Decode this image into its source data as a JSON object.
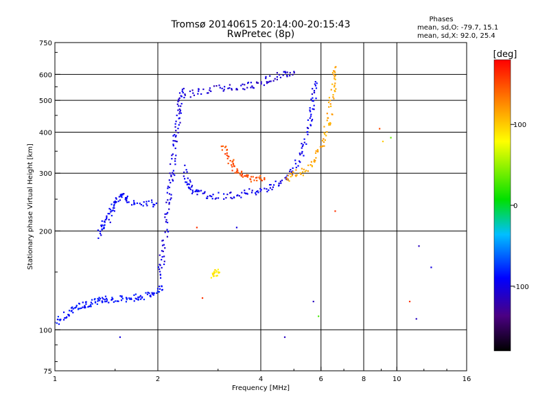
{
  "chart_data": {
    "type": "scatter",
    "title": "Tromsø 20140615 20:14:00-20:15:43",
    "subtitle": "RwPretec (8p)",
    "xlabel": "Frequency [MHz]",
    "ylabel": "Stationary phase Virtual Height [km]",
    "x_scale": "log",
    "y_scale": "log",
    "xlim": [
      1,
      16
    ],
    "ylim": [
      75,
      750
    ],
    "x_ticks": [
      {
        "value": 1,
        "label": "1"
      },
      {
        "value": 2,
        "label": "2"
      },
      {
        "value": 4,
        "label": "4"
      },
      {
        "value": 6,
        "label": "6"
      },
      {
        "value": 8,
        "label": "8"
      },
      {
        "value": 10,
        "label": "10"
      },
      {
        "value": 16,
        "label": "16"
      }
    ],
    "x_gridlines": [
      2,
      4,
      6,
      8,
      10
    ],
    "y_ticks": [
      {
        "value": 75,
        "label": "75"
      },
      {
        "value": 100,
        "label": "100"
      },
      {
        "value": 200,
        "label": "200"
      },
      {
        "value": 300,
        "label": "300"
      },
      {
        "value": 400,
        "label": "400"
      },
      {
        "value": 500,
        "label": "500"
      },
      {
        "value": 600,
        "label": "600"
      },
      {
        "value": 750,
        "label": "750"
      }
    ],
    "y_gridlines": [
      100,
      200,
      300,
      400,
      500,
      600
    ],
    "stats_header": "Phases",
    "stats_lines": [
      "mean, sd,O: -79.7, 15.1",
      "mean, sd,X:  92.0, 25.4"
    ],
    "colorbar": {
      "label": "[deg]",
      "range": [
        -180,
        180
      ],
      "ticks": [
        {
          "value": 100,
          "label": "100"
        },
        {
          "value": 0,
          "label": "0"
        },
        {
          "value": -100,
          "label": "-100"
        }
      ]
    },
    "traces": [
      {
        "phase": -95,
        "points": [
          [
            1.0,
            105
          ],
          [
            1.05,
            108
          ],
          [
            1.1,
            113
          ],
          [
            1.15,
            117
          ],
          [
            1.2,
            119
          ],
          [
            1.25,
            120
          ],
          [
            1.3,
            121
          ],
          [
            1.35,
            123
          ],
          [
            1.4,
            124
          ],
          [
            1.5,
            124
          ],
          [
            1.6,
            124
          ],
          [
            1.7,
            125
          ],
          [
            1.8,
            126
          ],
          [
            1.9,
            128
          ],
          [
            2.0,
            131
          ],
          [
            2.05,
            136
          ]
        ]
      },
      {
        "phase": -100,
        "points": [
          [
            1.35,
            195
          ],
          [
            1.38,
            205
          ],
          [
            1.42,
            215
          ],
          [
            1.45,
            228
          ],
          [
            1.48,
            240
          ],
          [
            1.52,
            250
          ],
          [
            1.56,
            255
          ],
          [
            1.6,
            252
          ],
          [
            1.7,
            245
          ],
          [
            1.85,
            243
          ],
          [
            1.98,
            243
          ]
        ]
      },
      {
        "phase": -110,
        "points": [
          [
            2.02,
            145
          ],
          [
            2.05,
            160
          ],
          [
            2.08,
            180
          ],
          [
            2.12,
            210
          ],
          [
            2.15,
            240
          ],
          [
            2.17,
            270
          ],
          [
            2.2,
            300
          ],
          [
            2.22,
            340
          ],
          [
            2.25,
            380
          ],
          [
            2.28,
            420
          ],
          [
            2.3,
            460
          ],
          [
            2.33,
            500
          ],
          [
            2.36,
            540
          ]
        ]
      },
      {
        "phase": -105,
        "points": [
          [
            2.4,
            310
          ],
          [
            2.45,
            280
          ],
          [
            2.5,
            268
          ],
          [
            2.6,
            262
          ],
          [
            2.8,
            258
          ],
          [
            3.0,
            256
          ],
          [
            3.3,
            257
          ],
          [
            3.6,
            260
          ],
          [
            3.9,
            264
          ],
          [
            4.2,
            270
          ],
          [
            4.5,
            280
          ],
          [
            4.8,
            290
          ],
          [
            5.0,
            310
          ],
          [
            5.2,
            340
          ],
          [
            5.4,
            375
          ],
          [
            5.55,
            420
          ],
          [
            5.65,
            470
          ],
          [
            5.72,
            520
          ],
          [
            5.78,
            570
          ]
        ]
      },
      {
        "phase": -115,
        "points": [
          [
            2.4,
            520
          ],
          [
            2.6,
            530
          ],
          [
            2.9,
            540
          ],
          [
            3.2,
            548
          ],
          [
            3.5,
            552
          ],
          [
            3.8,
            556
          ],
          [
            4.1,
            570
          ],
          [
            4.4,
            590
          ],
          [
            4.7,
            605
          ],
          [
            5.0,
            612
          ]
        ]
      },
      {
        "phase": 115,
        "points": [
          [
            4.8,
            290
          ],
          [
            5.0,
            296
          ],
          [
            5.3,
            305
          ],
          [
            5.6,
            320
          ],
          [
            5.9,
            345
          ],
          [
            6.1,
            380
          ],
          [
            6.3,
            420
          ],
          [
            6.4,
            470
          ],
          [
            6.5,
            530
          ],
          [
            6.55,
            580
          ],
          [
            6.6,
            630
          ]
        ]
      },
      {
        "phase": 150,
        "points": [
          [
            3.1,
            360
          ],
          [
            3.2,
            340
          ],
          [
            3.3,
            320
          ],
          [
            3.4,
            305
          ],
          [
            3.55,
            295
          ],
          [
            3.7,
            290
          ],
          [
            3.9,
            288
          ],
          [
            4.1,
            288
          ]
        ]
      },
      {
        "phase": 90,
        "points": [
          [
            2.9,
            145
          ],
          [
            2.95,
            148
          ],
          [
            3.0,
            150
          ]
        ]
      }
    ],
    "scatter_points": [
      {
        "x": 2.6,
        "y": 205,
        "phase": 160
      },
      {
        "x": 3.4,
        "y": 205,
        "phase": -110
      },
      {
        "x": 4.7,
        "y": 95,
        "phase": -120
      },
      {
        "x": 5.7,
        "y": 122,
        "phase": -120
      },
      {
        "x": 5.9,
        "y": 110,
        "phase": 20
      },
      {
        "x": 6.6,
        "y": 230,
        "phase": 160
      },
      {
        "x": 8.9,
        "y": 410,
        "phase": 150
      },
      {
        "x": 9.1,
        "y": 375,
        "phase": 100
      },
      {
        "x": 9.6,
        "y": 385,
        "phase": 30
      },
      {
        "x": 10.9,
        "y": 122,
        "phase": 160
      },
      {
        "x": 11.6,
        "y": 180,
        "phase": -120
      },
      {
        "x": 11.4,
        "y": 108,
        "phase": -120
      },
      {
        "x": 12.6,
        "y": 155,
        "phase": -110
      },
      {
        "x": 1.55,
        "y": 95,
        "phase": -110
      },
      {
        "x": 2.7,
        "y": 125,
        "phase": 160
      }
    ]
  }
}
